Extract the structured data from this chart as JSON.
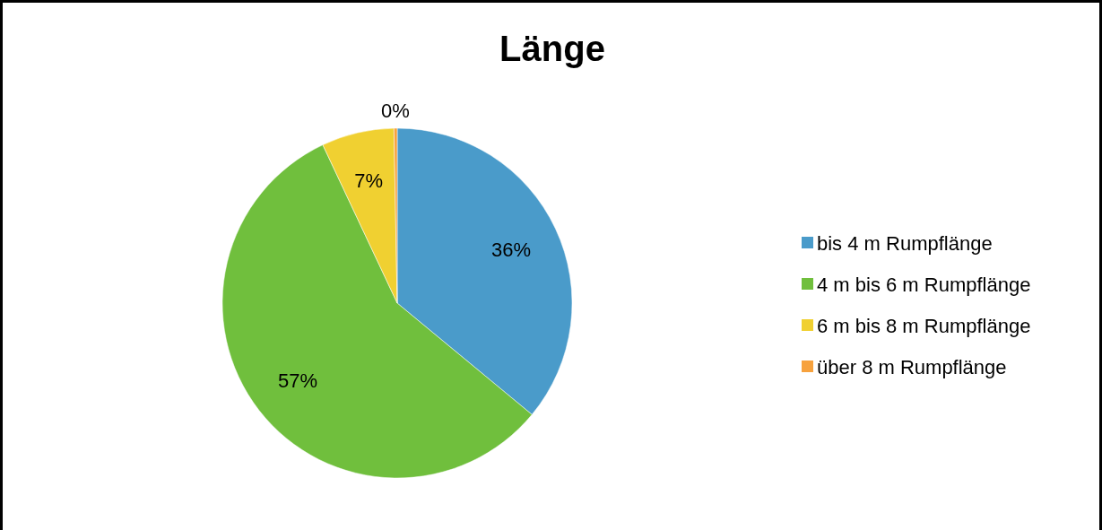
{
  "chart_data": {
    "type": "pie",
    "title": "Länge",
    "categories": [
      "bis 4 m Rumpflänge",
      "4 m bis 6 m Rumpflänge",
      "6 m bis 8 m Rumpflänge",
      "über 8 m Rumpflänge"
    ],
    "values": [
      36,
      57,
      6.7,
      0.3
    ],
    "value_labels": [
      "36%",
      "57%",
      "7%",
      "0%"
    ],
    "colors": [
      "#4a9bca",
      "#70bf3d",
      "#f0d031",
      "#f7a23e"
    ],
    "legend": "right"
  }
}
